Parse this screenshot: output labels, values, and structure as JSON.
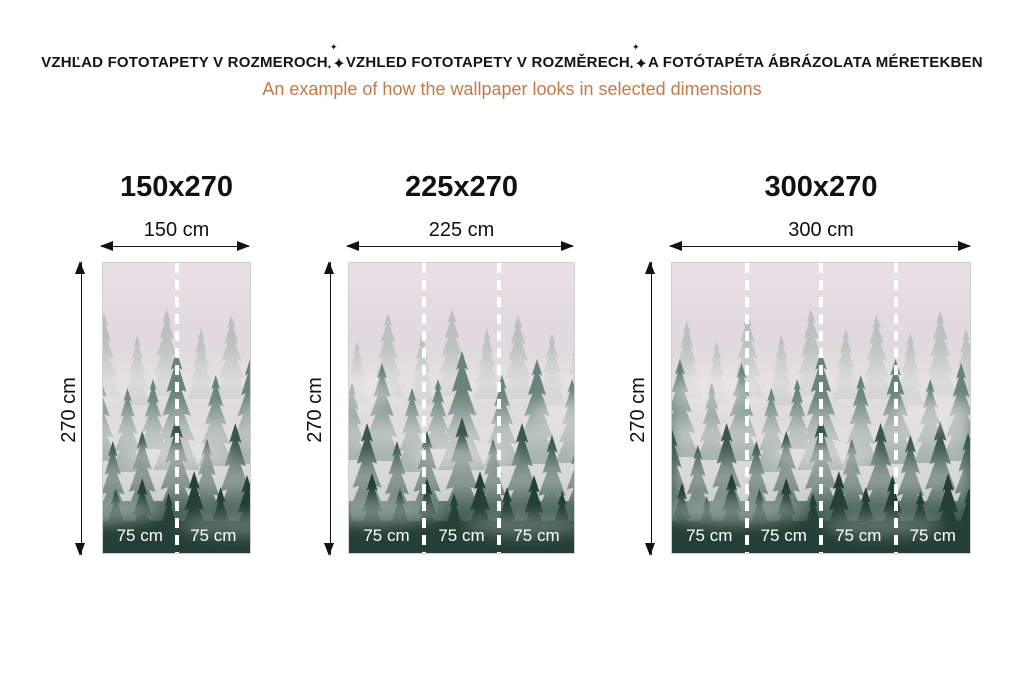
{
  "header": {
    "title_parts": [
      "VZHĽAD FOTOTAPETY V ROZMEROCH",
      "VZHLED FOTOTAPETY V ROZMĚRECH",
      "A FOTÓTAPÉTA ÁBRÁZOLATA MÉRETEKBEN"
    ],
    "separator_icon": "sparkle-icon",
    "separator_glyph": "✦",
    "subtitle": "An example of how the wallpaper looks in selected dimensions",
    "title_color": "#141414",
    "subtitle_color": "#c27a4b"
  },
  "columns": [
    {
      "title": "150x270",
      "width_label": "150 cm",
      "height_label": "270 cm",
      "panel_labels": [
        "75 cm",
        "75 cm"
      ]
    },
    {
      "title": "225x270",
      "width_label": "225 cm",
      "height_label": "270 cm",
      "panel_labels": [
        "75 cm",
        "75 cm",
        "75 cm"
      ]
    },
    {
      "title": "300x270",
      "width_label": "300 cm",
      "height_label": "270 cm",
      "panel_labels": [
        "75 cm",
        "75 cm",
        "75 cm",
        "75 cm"
      ]
    }
  ],
  "artwork": {
    "description_colors": {
      "sky_pink": "#e9dfe4",
      "far_trees": "#8fa49c",
      "mid_trees": "#5b7a71",
      "near_trees": "#3a574e",
      "front_trees": "#243f37",
      "label_text": "#ffffff"
    }
  }
}
